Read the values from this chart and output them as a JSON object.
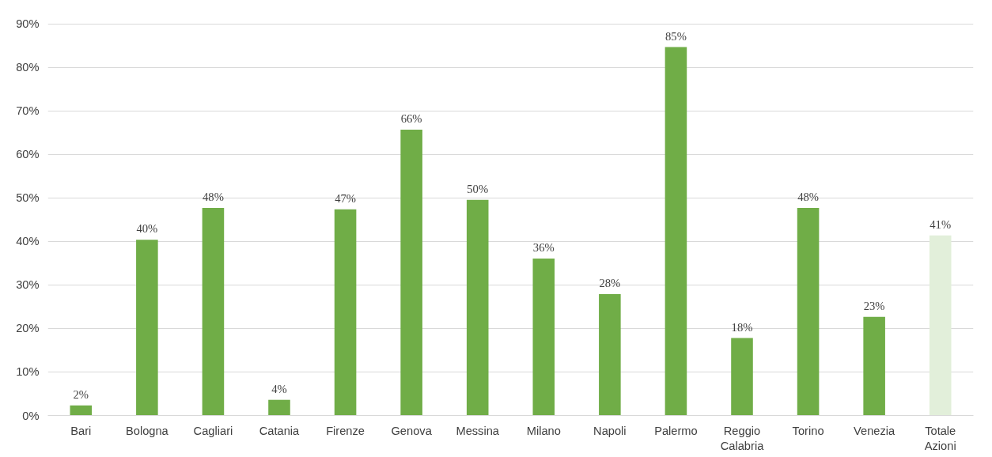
{
  "chart_data": {
    "type": "bar",
    "categories": [
      "Bari",
      "Bologna",
      "Cagliari",
      "Catania",
      "Firenze",
      "Genova",
      "Messina",
      "Milano",
      "Napoli",
      "Palermo",
      "Reggio Calabria",
      "Torino",
      "Venezia",
      "Totale Azioni"
    ],
    "values": [
      2.3,
      40.4,
      47.7,
      3.6,
      47.4,
      65.7,
      49.6,
      36.1,
      27.9,
      84.7,
      17.8,
      47.7,
      22.7,
      41.4
    ],
    "value_labels": [
      "2%",
      "40%",
      "48%",
      "4%",
      "47%",
      "66%",
      "50%",
      "36%",
      "28%",
      "85%",
      "18%",
      "48%",
      "23%",
      "41%"
    ],
    "colors": [
      "#70ad47",
      "#70ad47",
      "#70ad47",
      "#70ad47",
      "#70ad47",
      "#70ad47",
      "#70ad47",
      "#70ad47",
      "#70ad47",
      "#70ad47",
      "#70ad47",
      "#70ad47",
      "#70ad47",
      "#e2efda"
    ],
    "ylim": [
      0,
      90
    ],
    "yticks": [
      {
        "value": 0,
        "label": "0%"
      },
      {
        "value": 10,
        "label": "10%"
      },
      {
        "value": 20,
        "label": "20%"
      },
      {
        "value": 30,
        "label": "30%"
      },
      {
        "value": 40,
        "label": "40%"
      },
      {
        "value": 50,
        "label": "50%"
      },
      {
        "value": 60,
        "label": "60%"
      },
      {
        "value": 70,
        "label": "70%"
      },
      {
        "value": 80,
        "label": "80%"
      },
      {
        "value": 90,
        "label": "90%"
      }
    ],
    "grid": "y"
  }
}
